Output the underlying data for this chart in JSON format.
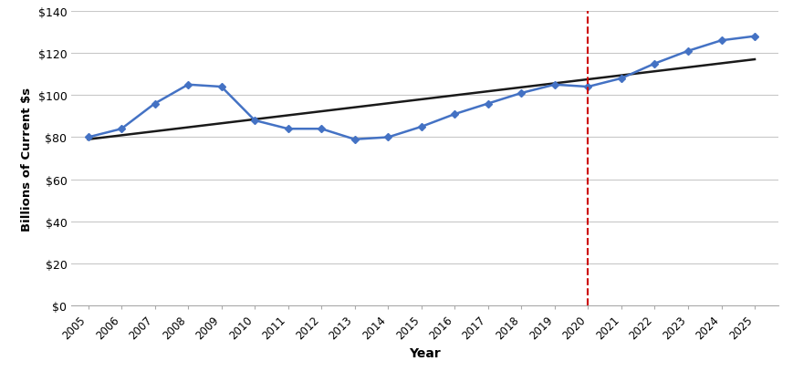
{
  "years": [
    2005,
    2006,
    2007,
    2008,
    2009,
    2010,
    2011,
    2012,
    2013,
    2014,
    2015,
    2016,
    2017,
    2018,
    2019,
    2020,
    2021,
    2022,
    2023,
    2024,
    2025
  ],
  "values": [
    80,
    84,
    96,
    105,
    104,
    88,
    84,
    84,
    79,
    80,
    85,
    91,
    96,
    101,
    105,
    104,
    108,
    115,
    121,
    126,
    128
  ],
  "trend_x": [
    2005,
    2025
  ],
  "trend_y": [
    79,
    117
  ],
  "vline_x": 2020,
  "xlim": [
    2004.5,
    2025.7
  ],
  "ylim": [
    0,
    140
  ],
  "yticks": [
    0,
    20,
    40,
    60,
    80,
    100,
    120,
    140
  ],
  "xlabel": "Year",
  "ylabel": "Billions of Current $s",
  "line_color": "#4472C4",
  "marker_style": "D",
  "marker_size": 4,
  "trend_color": "#1a1a1a",
  "vline_color": "#CC0000",
  "grid_color": "#C8C8C8",
  "background_color": "#FFFFFF",
  "spine_color": "#AAAAAA"
}
